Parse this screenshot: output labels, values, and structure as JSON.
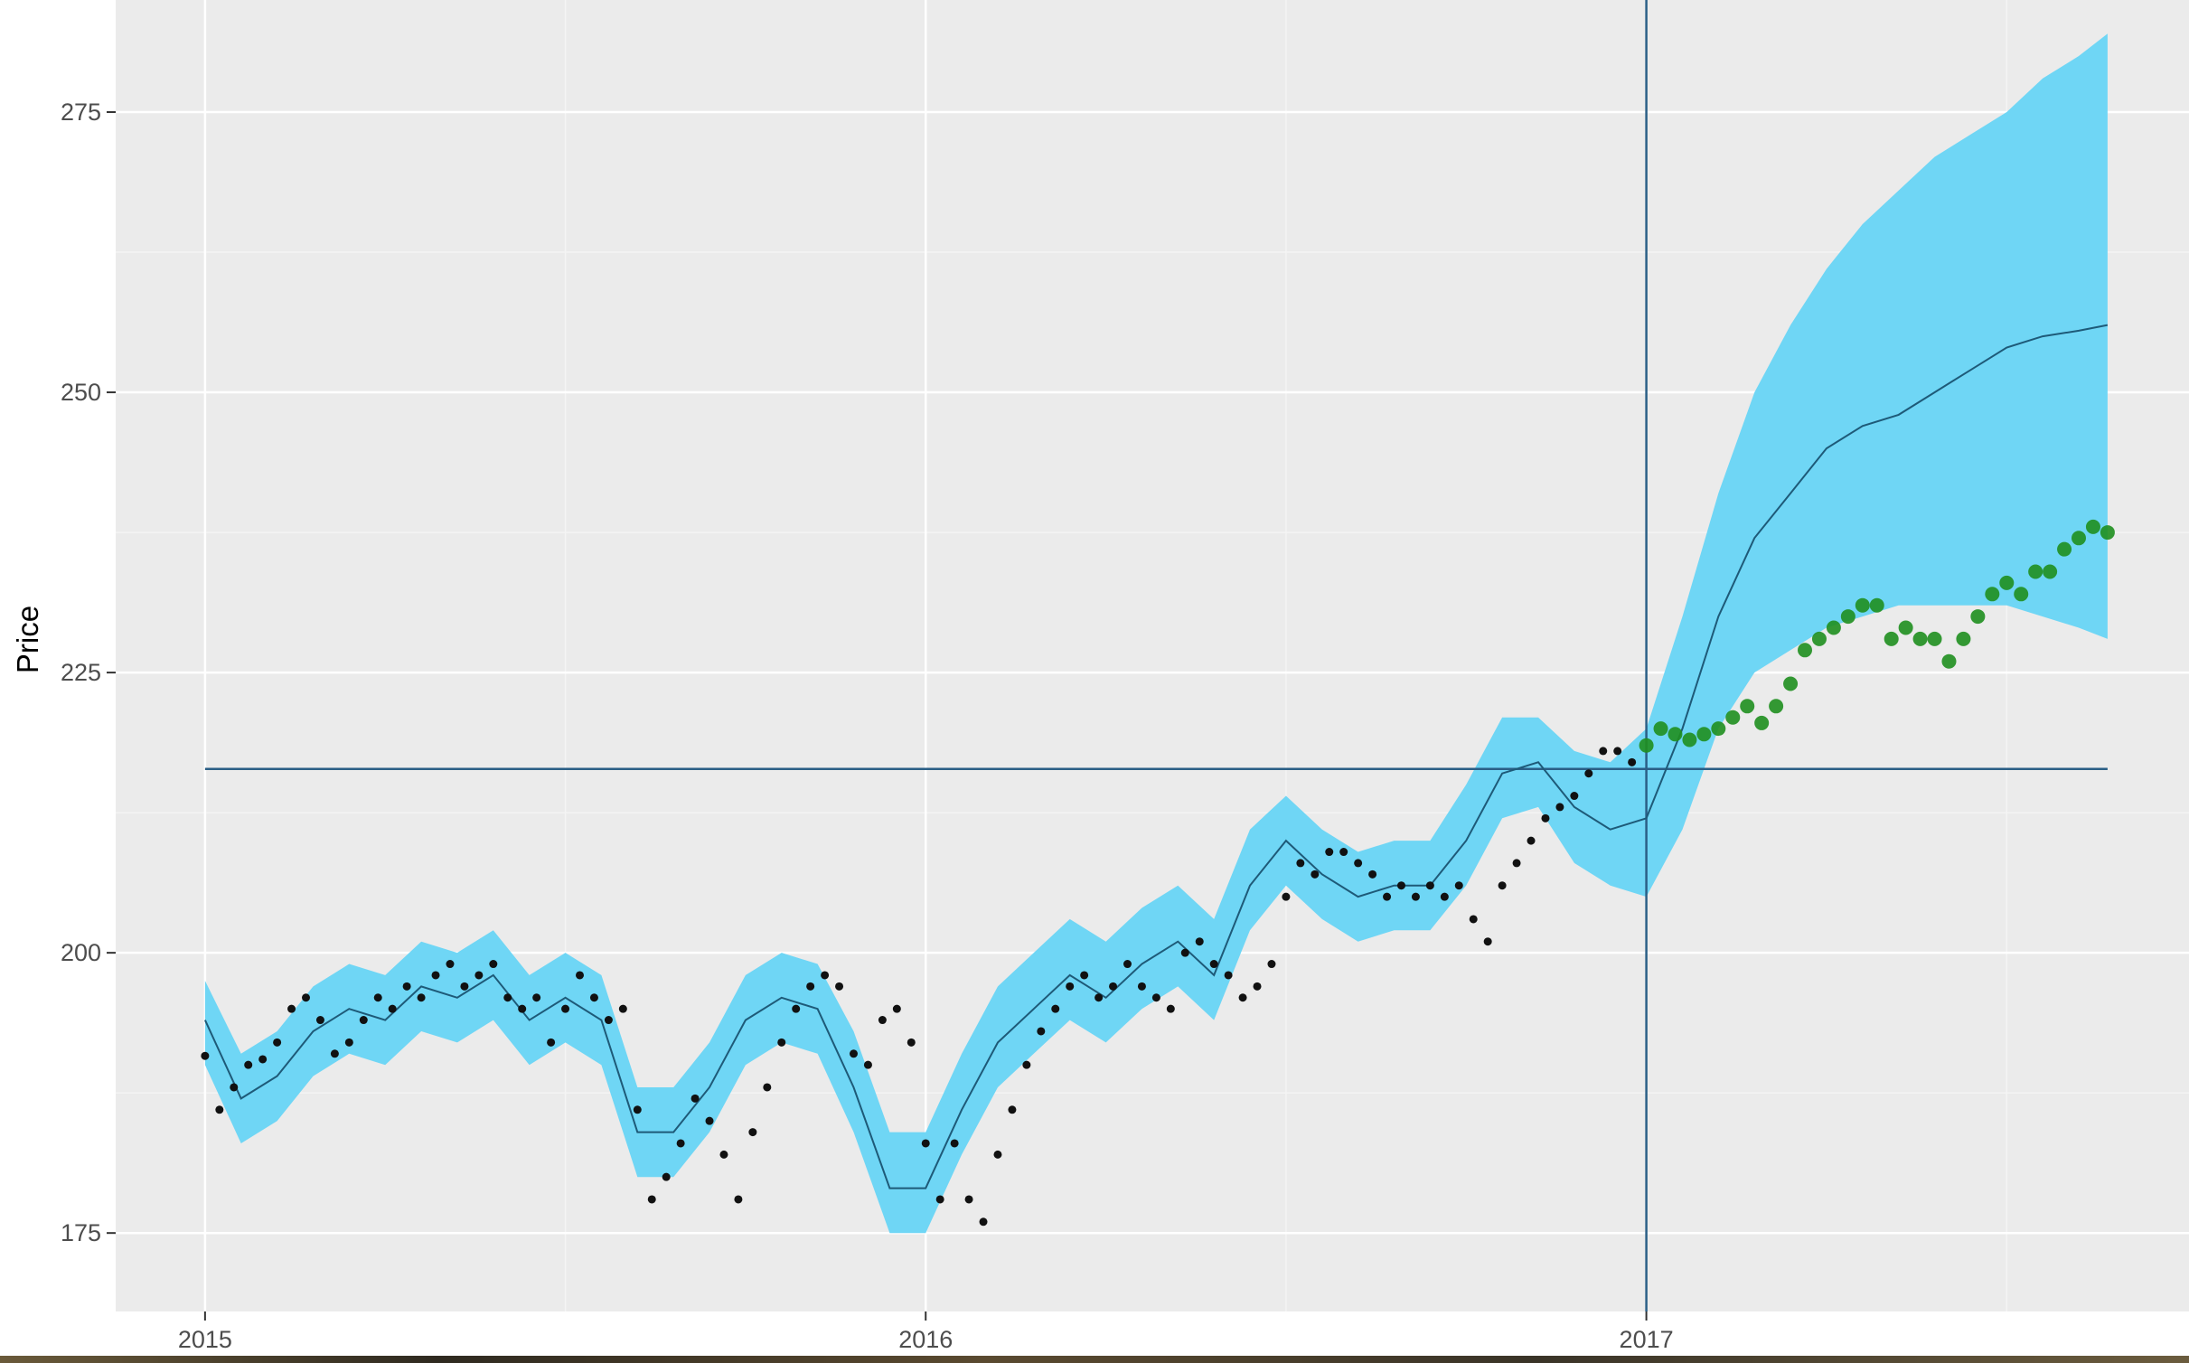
{
  "chart_data": {
    "type": "line",
    "title": "",
    "xlabel": "",
    "ylabel": "Price",
    "x_ticks": [
      "2015",
      "2016",
      "2017"
    ],
    "y_ticks": [
      175,
      200,
      225,
      250,
      275
    ],
    "xlim": [
      2014.876,
      2017.753
    ],
    "ylim": [
      168,
      285
    ],
    "grid": true,
    "legend": "none",
    "colors": {
      "panel": "#ebebeb",
      "grid_major": "#ffffff",
      "grid_minor": "#f4f4f4",
      "band": "#6fd6f5",
      "forecast_line": "#1e5a78",
      "observed": "#111111",
      "test_points": "#1f8f1f",
      "reference_lines": "#2b5f86"
    },
    "reference_lines": {
      "vline_x": 2017.0,
      "hline_y": 216.4,
      "hline_from": 2015.0,
      "hline_to": 2017.64
    },
    "series": [
      {
        "key": "forecast",
        "x": [
          2015.0,
          2015.05,
          2015.1,
          2015.15,
          2015.2,
          2015.25,
          2015.3,
          2015.35,
          2015.4,
          2015.45,
          2015.5,
          2015.55,
          2015.6,
          2015.65,
          2015.7,
          2015.75,
          2015.8,
          2015.85,
          2015.9,
          2015.95,
          2016.0,
          2016.05,
          2016.1,
          2016.15,
          2016.2,
          2016.25,
          2016.3,
          2016.35,
          2016.4,
          2016.45,
          2016.5,
          2016.55,
          2016.6,
          2016.65,
          2016.7,
          2016.75,
          2016.8,
          2016.85,
          2016.9,
          2016.95,
          2017.0,
          2017.05,
          2017.1,
          2017.15,
          2017.2,
          2017.25,
          2017.3,
          2017.35,
          2017.4,
          2017.45,
          2017.5,
          2017.55,
          2017.6,
          2017.64
        ],
        "y": [
          194,
          187,
          189,
          193,
          195,
          194,
          197,
          196,
          198,
          194,
          196,
          194,
          184,
          184,
          188,
          194,
          196,
          195,
          188,
          179,
          179,
          186,
          192,
          195,
          198,
          196,
          199,
          201,
          198,
          206,
          210,
          207,
          205,
          206,
          206,
          210,
          216,
          217,
          213,
          211,
          212,
          220,
          230,
          237,
          241,
          245,
          247,
          248,
          250,
          252,
          254,
          255,
          255.5,
          256
        ]
      },
      {
        "key": "band_upper",
        "x": [
          2015.0,
          2015.05,
          2015.1,
          2015.15,
          2015.2,
          2015.25,
          2015.3,
          2015.35,
          2015.4,
          2015.45,
          2015.5,
          2015.55,
          2015.6,
          2015.65,
          2015.7,
          2015.75,
          2015.8,
          2015.85,
          2015.9,
          2015.95,
          2016.0,
          2016.05,
          2016.1,
          2016.15,
          2016.2,
          2016.25,
          2016.3,
          2016.35,
          2016.4,
          2016.45,
          2016.5,
          2016.55,
          2016.6,
          2016.65,
          2016.7,
          2016.75,
          2016.8,
          2016.85,
          2016.9,
          2016.95,
          2017.0,
          2017.05,
          2017.1,
          2017.15,
          2017.2,
          2017.25,
          2017.3,
          2017.35,
          2017.4,
          2017.45,
          2017.5,
          2017.55,
          2017.6,
          2017.64
        ],
        "y": [
          197.5,
          191,
          193,
          197,
          199,
          198,
          201,
          200,
          202,
          198,
          200,
          198,
          188,
          188,
          192,
          198,
          200,
          199,
          193,
          184,
          184,
          191,
          197,
          200,
          203,
          201,
          204,
          206,
          203,
          211,
          214,
          211,
          209,
          210,
          210,
          215,
          221,
          221,
          218,
          217,
          220,
          230,
          241,
          250,
          256,
          261,
          265,
          268,
          271,
          273,
          275,
          278,
          280,
          282
        ]
      },
      {
        "key": "band_lower",
        "x": [
          2015.0,
          2015.05,
          2015.1,
          2015.15,
          2015.2,
          2015.25,
          2015.3,
          2015.35,
          2015.4,
          2015.45,
          2015.5,
          2015.55,
          2015.6,
          2015.65,
          2015.7,
          2015.75,
          2015.8,
          2015.85,
          2015.9,
          2015.95,
          2016.0,
          2016.05,
          2016.1,
          2016.15,
          2016.2,
          2016.25,
          2016.3,
          2016.35,
          2016.4,
          2016.45,
          2016.5,
          2016.55,
          2016.6,
          2016.65,
          2016.7,
          2016.75,
          2016.8,
          2016.85,
          2016.9,
          2016.95,
          2017.0,
          2017.05,
          2017.1,
          2017.15,
          2017.2,
          2017.25,
          2017.3,
          2017.35,
          2017.4,
          2017.45,
          2017.5,
          2017.55,
          2017.6,
          2017.64
        ],
        "y": [
          190,
          183,
          185,
          189,
          191,
          190,
          193,
          192,
          194,
          190,
          192,
          190,
          180,
          180,
          184,
          190,
          192,
          191,
          184,
          175,
          175,
          182,
          188,
          191,
          194,
          192,
          195,
          197,
          194,
          202,
          206,
          203,
          201,
          202,
          202,
          206,
          212,
          213,
          208,
          206,
          205,
          211,
          220,
          225,
          227,
          229,
          230,
          231,
          231,
          231,
          231,
          230,
          229,
          228
        ]
      },
      {
        "key": "observed",
        "x": [
          2015.0,
          2015.02,
          2015.04,
          2015.06,
          2015.08,
          2015.1,
          2015.12,
          2015.14,
          2015.16,
          2015.18,
          2015.2,
          2015.22,
          2015.24,
          2015.26,
          2015.28,
          2015.3,
          2015.32,
          2015.34,
          2015.36,
          2015.38,
          2015.4,
          2015.42,
          2015.44,
          2015.46,
          2015.48,
          2015.5,
          2015.52,
          2015.54,
          2015.56,
          2015.58,
          2015.6,
          2015.62,
          2015.64,
          2015.66,
          2015.68,
          2015.7,
          2015.72,
          2015.74,
          2015.76,
          2015.78,
          2015.8,
          2015.82,
          2015.84,
          2015.86,
          2015.88,
          2015.9,
          2015.92,
          2015.94,
          2015.96,
          2015.98,
          2016.0,
          2016.02,
          2016.04,
          2016.06,
          2016.08,
          2016.1,
          2016.12,
          2016.14,
          2016.16,
          2016.18,
          2016.2,
          2016.22,
          2016.24,
          2016.26,
          2016.28,
          2016.3,
          2016.32,
          2016.34,
          2016.36,
          2016.38,
          2016.4,
          2016.42,
          2016.44,
          2016.46,
          2016.48,
          2016.5,
          2016.52,
          2016.54,
          2016.56,
          2016.58,
          2016.6,
          2016.62,
          2016.64,
          2016.66,
          2016.68,
          2016.7,
          2016.72,
          2016.74,
          2016.76,
          2016.78,
          2016.8,
          2016.82,
          2016.84,
          2016.86,
          2016.88,
          2016.9,
          2016.92,
          2016.94,
          2016.96,
          2016.98
        ],
        "y": [
          190.8,
          186,
          188,
          190,
          190.5,
          192,
          195,
          196,
          194,
          191,
          192,
          194,
          196,
          195,
          197,
          196,
          198,
          199,
          197,
          198,
          199,
          196,
          195,
          196,
          192,
          195,
          198,
          196,
          194,
          195,
          186,
          178,
          180,
          183,
          187,
          185,
          182,
          178,
          184,
          188,
          192,
          195,
          197,
          198,
          197,
          191,
          190,
          194,
          195,
          192,
          183,
          178,
          183,
          178,
          176,
          182,
          186,
          190,
          193,
          195,
          197,
          198,
          196,
          197,
          199,
          197,
          196,
          195,
          200,
          201,
          199,
          198,
          196,
          197,
          199,
          205,
          208,
          207,
          209,
          209,
          208,
          207,
          205,
          206,
          205,
          206,
          205,
          206,
          203,
          201,
          206,
          208,
          210,
          212,
          213,
          214,
          216,
          218,
          218,
          217
        ]
      },
      {
        "key": "test_points",
        "x": [
          2017.0,
          2017.02,
          2017.04,
          2017.06,
          2017.08,
          2017.1,
          2017.12,
          2017.14,
          2017.16,
          2017.18,
          2017.2,
          2017.22,
          2017.24,
          2017.26,
          2017.28,
          2017.3,
          2017.32,
          2017.34,
          2017.36,
          2017.38,
          2017.4,
          2017.42,
          2017.44,
          2017.46,
          2017.48,
          2017.5,
          2017.52,
          2017.54,
          2017.56,
          2017.58,
          2017.6,
          2017.62,
          2017.64
        ],
        "y": [
          218.5,
          220,
          219.5,
          219,
          219.5,
          220,
          221,
          222,
          220.5,
          222,
          224,
          227,
          228,
          229,
          230,
          231,
          231,
          228,
          229,
          228,
          228,
          226,
          228,
          230,
          232,
          233,
          232,
          234,
          234,
          236,
          237,
          238,
          237.5
        ]
      }
    ]
  }
}
